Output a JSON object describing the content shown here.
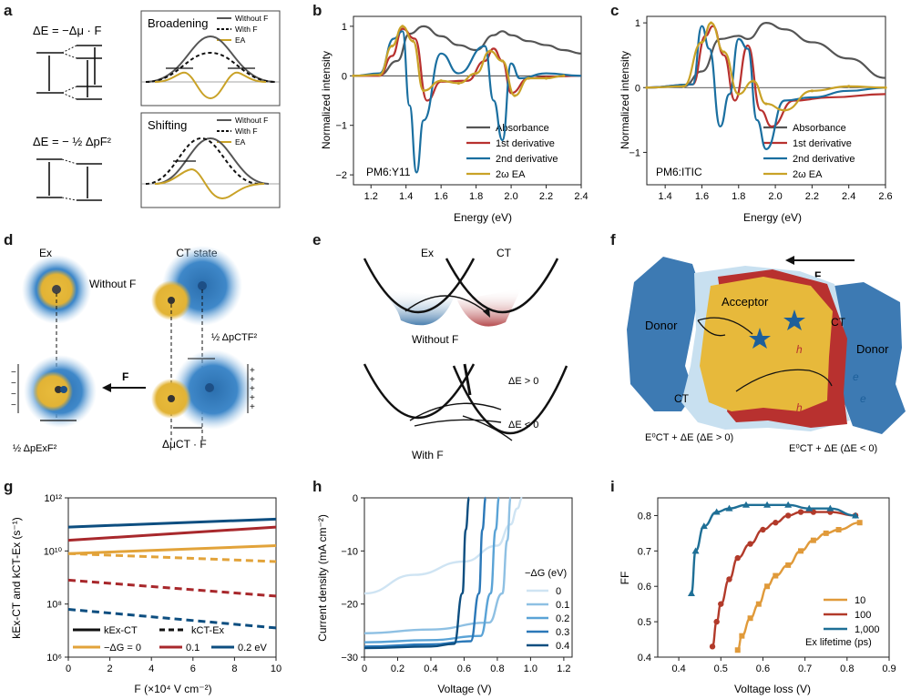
{
  "panel_labels": {
    "a": "a",
    "b": "b",
    "c": "c",
    "d": "d",
    "e": "e",
    "f": "f",
    "g": "g",
    "h": "h",
    "i": "i"
  },
  "colors": {
    "absorbance": "#555555",
    "first": "#b8312f",
    "second": "#1a6fa0",
    "ea": "#c9a227",
    "blue_dark": "#0d4e80",
    "blue_mid": "#2b78b8",
    "gold": "#e2b335",
    "red": "#b8312f"
  },
  "panel_a": {
    "eq1": "ΔE = −Δμ · F",
    "eq2": "ΔE = − ½ ΔpF²",
    "top_title": "Broadening",
    "bottom_title": "Shifting",
    "legend": [
      "Without F",
      "With F",
      "EA"
    ]
  },
  "panel_b": {
    "ylabel": "Normalized intensity",
    "xlabel": "Energy (eV)",
    "material": "PM6:Y11",
    "legend": [
      "Absorbance",
      "1st derivative",
      "2nd derivative",
      "2ω EA"
    ],
    "xticks": [
      "1.2",
      "1.4",
      "1.6",
      "1.8",
      "2.0",
      "2.2",
      "2.4"
    ],
    "yticks": [
      "1",
      "0",
      "−1",
      "−2"
    ]
  },
  "panel_c": {
    "ylabel": "Normalized intensity",
    "xlabel": "Energy (eV)",
    "material": "PM6:ITIC",
    "legend": [
      "Absorbance",
      "1st derivative",
      "2nd derivative",
      "2ω EA"
    ],
    "xticks": [
      "1.4",
      "1.6",
      "1.8",
      "2.0",
      "2.2",
      "2.4",
      "2.6"
    ],
    "yticks": [
      "1",
      "0",
      "−1"
    ]
  },
  "panel_d": {
    "ex": "Ex",
    "ct": "CT state",
    "without": "Without F",
    "f_label": "F",
    "term_ct": "½ ΔpCTF²",
    "term_ex": "½ ΔpExF²",
    "term_mu": "ΔμCT · F"
  },
  "panel_e": {
    "ex": "Ex",
    "ct": "CT",
    "without": "Without F",
    "with": "With F",
    "dE_pos": "ΔE > 0",
    "dE_neg": "ΔE < 0"
  },
  "panel_f": {
    "donor": "Donor",
    "acceptor": "Acceptor",
    "ct": "CT",
    "f_label": "F",
    "h": "h",
    "e": "e",
    "ann_left": "E⁰CT + ΔE (ΔE > 0)",
    "ann_right": "E⁰CT + ΔE (ΔE < 0)"
  },
  "panel_g": {
    "ylabel": "kEx-CT and kCT-Ex (s⁻¹)",
    "xlabel": "F (×10⁴ V cm⁻²)",
    "xticks": [
      "0",
      "2",
      "4",
      "6",
      "8",
      "10"
    ],
    "yticks": [
      "10¹²",
      "10¹⁰",
      "10⁸",
      "10⁶"
    ],
    "legend_solid": "kEx-CT",
    "legend_dashed": "kCT-Ex",
    "legend_series": [
      "−ΔG = 0",
      "0.1",
      "0.2 eV"
    ]
  },
  "panel_h": {
    "ylabel": "Current density (mA cm⁻²)",
    "xlabel": "Voltage (V)",
    "xticks": [
      "0",
      "0.2",
      "0.4",
      "0.6",
      "0.8",
      "1.0",
      "1.2"
    ],
    "yticks": [
      "0",
      "−10",
      "−20",
      "−30"
    ],
    "legend_title": "−ΔG (eV)",
    "legend": [
      "0",
      "0.1",
      "0.2",
      "0.3",
      "0.4"
    ]
  },
  "panel_i": {
    "ylabel": "FF",
    "xlabel": "Voltage loss (V)",
    "xticks": [
      "0.4",
      "0.5",
      "0.6",
      "0.7",
      "0.8",
      "0.9"
    ],
    "yticks": [
      "0.8",
      "0.7",
      "0.6",
      "0.5",
      "0.4"
    ],
    "legend": [
      "10",
      "100",
      "1,000"
    ],
    "legend_title": "Ex lifetime (ps)"
  },
  "chart_data": [
    {
      "type": "line",
      "panel": "b",
      "xlabel": "Energy (eV)",
      "ylabel": "Normalized intensity",
      "xlim": [
        1.1,
        2.4
      ],
      "ylim": [
        -2.2,
        1.2
      ],
      "series": [
        {
          "name": "Absorbance",
          "x": [
            1.1,
            1.25,
            1.35,
            1.42,
            1.5,
            1.6,
            1.7,
            1.8,
            1.9,
            1.95,
            2.0,
            2.1,
            2.2,
            2.3,
            2.4
          ],
          "y": [
            0,
            0.02,
            0.3,
            0.85,
            1.0,
            0.8,
            0.62,
            0.52,
            0.82,
            0.9,
            0.82,
            0.7,
            0.62,
            0.52,
            0.45
          ]
        },
        {
          "name": "1st derivative",
          "x": [
            1.1,
            1.25,
            1.32,
            1.38,
            1.45,
            1.52,
            1.6,
            1.75,
            1.85,
            1.9,
            1.95,
            2.0,
            2.1,
            2.2,
            2.4
          ],
          "y": [
            0,
            0.0,
            0.4,
            0.95,
            0.75,
            -0.5,
            -0.12,
            -0.1,
            0.3,
            0.55,
            0.3,
            -0.35,
            -0.05,
            -0.02,
            0
          ]
        },
        {
          "name": "2nd derivative",
          "x": [
            1.1,
            1.25,
            1.33,
            1.38,
            1.42,
            1.46,
            1.5,
            1.6,
            1.7,
            1.85,
            1.9,
            1.95,
            2.0,
            2.05,
            2.2,
            2.4
          ],
          "y": [
            0,
            0.05,
            0.75,
            0.9,
            -0.6,
            -1.95,
            -0.9,
            0.45,
            0.05,
            0.6,
            -0.5,
            -1.3,
            0.25,
            -0.05,
            0.05,
            0
          ]
        },
        {
          "name": "2ω EA",
          "x": [
            1.1,
            1.25,
            1.32,
            1.38,
            1.44,
            1.5,
            1.6,
            1.7,
            1.8,
            1.88,
            1.95,
            2.02,
            2.1,
            2.2,
            2.3
          ],
          "y": [
            0,
            0.02,
            0.6,
            1.0,
            0.7,
            -0.3,
            -0.1,
            -0.15,
            0.05,
            0.5,
            0.3,
            -0.4,
            -0.05,
            -0.05,
            0
          ]
        }
      ]
    },
    {
      "type": "line",
      "panel": "c",
      "xlabel": "Energy (eV)",
      "ylabel": "Normalized intensity",
      "xlim": [
        1.3,
        2.6
      ],
      "ylim": [
        -1.5,
        1.1
      ],
      "series": [
        {
          "name": "Absorbance",
          "x": [
            1.3,
            1.5,
            1.6,
            1.7,
            1.8,
            1.85,
            1.95,
            2.05,
            2.2,
            2.4,
            2.6
          ],
          "y": [
            0,
            0.02,
            0.25,
            0.75,
            0.8,
            0.75,
            1.0,
            0.9,
            0.7,
            0.45,
            0.15
          ]
        },
        {
          "name": "1st derivative",
          "x": [
            1.3,
            1.55,
            1.62,
            1.66,
            1.72,
            1.78,
            1.85,
            1.92,
            1.98,
            2.1,
            2.3,
            2.6
          ],
          "y": [
            0,
            0.05,
            0.8,
            0.95,
            0.5,
            -0.2,
            0.65,
            -0.35,
            -0.6,
            -0.2,
            -0.15,
            -0.1
          ]
        },
        {
          "name": "2nd derivative",
          "x": [
            1.3,
            1.55,
            1.6,
            1.64,
            1.7,
            1.75,
            1.8,
            1.85,
            1.9,
            1.95,
            2.05,
            2.2,
            2.4,
            2.6
          ],
          "y": [
            0,
            0.05,
            0.95,
            0.6,
            -0.6,
            -0.1,
            0.75,
            0.6,
            -0.5,
            -0.95,
            -0.2,
            -0.15,
            -0.05,
            0
          ]
        },
        {
          "name": "2ω EA",
          "x": [
            1.3,
            1.5,
            1.6,
            1.65,
            1.72,
            1.8,
            1.88,
            1.95,
            2.05,
            2.2,
            2.4,
            2.6
          ],
          "y": [
            0,
            0.02,
            0.7,
            1.0,
            0.55,
            -0.1,
            0.1,
            -0.25,
            -0.35,
            -0.05,
            0.02,
            0
          ]
        }
      ]
    },
    {
      "type": "line",
      "panel": "g",
      "xlabel": "F (×10⁴ V cm⁻²)",
      "xlim": [
        0,
        10
      ],
      "ylim_log10": [
        6,
        12
      ],
      "series": [
        {
          "name": "−ΔG = 0",
          "x": [
            0,
            10
          ],
          "kExCT_log10": [
            9.9,
            10.2
          ],
          "kCTEx_log10": [
            9.9,
            9.6
          ]
        },
        {
          "name": "0.1",
          "x": [
            0,
            10
          ],
          "kExCT_log10": [
            10.4,
            10.9
          ],
          "kCTEx_log10": [
            8.9,
            8.3
          ]
        },
        {
          "name": "0.2 eV",
          "x": [
            0,
            10
          ],
          "kExCT_log10": [
            10.9,
            11.2
          ],
          "kCTEx_log10": [
            7.8,
            7.1
          ]
        }
      ]
    },
    {
      "type": "line",
      "panel": "h",
      "xlabel": "Voltage (V)",
      "ylabel": "Current density (mA cm⁻²)",
      "xlim": [
        0,
        1.25
      ],
      "ylim": [
        -30,
        0
      ],
      "series": [
        {
          "name": "0",
          "x": [
            0,
            0.3,
            0.6,
            0.8,
            0.88,
            0.92,
            0.95
          ],
          "y": [
            -18,
            -14.5,
            -12,
            -9,
            -5,
            -2,
            0
          ]
        },
        {
          "name": "0.1",
          "x": [
            0,
            0.4,
            0.75,
            0.83,
            0.86,
            0.88
          ],
          "y": [
            -25.5,
            -24.8,
            -23.5,
            -18,
            -8,
            0
          ]
        },
        {
          "name": "0.2",
          "x": [
            0,
            0.4,
            0.7,
            0.76,
            0.79,
            0.81
          ],
          "y": [
            -27.2,
            -26.8,
            -26,
            -18,
            -6,
            0
          ]
        },
        {
          "name": "0.3",
          "x": [
            0,
            0.4,
            0.64,
            0.69,
            0.71,
            0.73
          ],
          "y": [
            -28,
            -27.6,
            -27,
            -18,
            -6,
            0
          ]
        },
        {
          "name": "0.4",
          "x": [
            0,
            0.4,
            0.54,
            0.59,
            0.61,
            0.63
          ],
          "y": [
            -28.3,
            -28,
            -27.5,
            -18,
            -6,
            0
          ]
        }
      ]
    },
    {
      "type": "line",
      "panel": "i",
      "xlabel": "Voltage loss (V)",
      "ylabel": "FF",
      "xlim": [
        0.35,
        0.9
      ],
      "ylim": [
        0.4,
        0.85
      ],
      "series": [
        {
          "name": "10",
          "x": [
            0.54,
            0.55,
            0.57,
            0.59,
            0.61,
            0.63,
            0.66,
            0.69,
            0.72,
            0.75,
            0.78,
            0.83
          ],
          "y": [
            0.42,
            0.46,
            0.51,
            0.55,
            0.6,
            0.63,
            0.66,
            0.7,
            0.73,
            0.75,
            0.76,
            0.78
          ]
        },
        {
          "name": "100",
          "x": [
            0.48,
            0.49,
            0.5,
            0.52,
            0.54,
            0.57,
            0.6,
            0.63,
            0.66,
            0.69,
            0.72,
            0.76,
            0.82
          ],
          "y": [
            0.43,
            0.5,
            0.55,
            0.62,
            0.68,
            0.72,
            0.76,
            0.78,
            0.8,
            0.81,
            0.81,
            0.81,
            0.8
          ]
        },
        {
          "name": "1,000",
          "x": [
            0.43,
            0.44,
            0.46,
            0.49,
            0.52,
            0.56,
            0.61,
            0.66,
            0.71,
            0.76,
            0.82
          ],
          "y": [
            0.58,
            0.7,
            0.77,
            0.81,
            0.82,
            0.83,
            0.83,
            0.83,
            0.82,
            0.82,
            0.8
          ]
        }
      ]
    }
  ]
}
